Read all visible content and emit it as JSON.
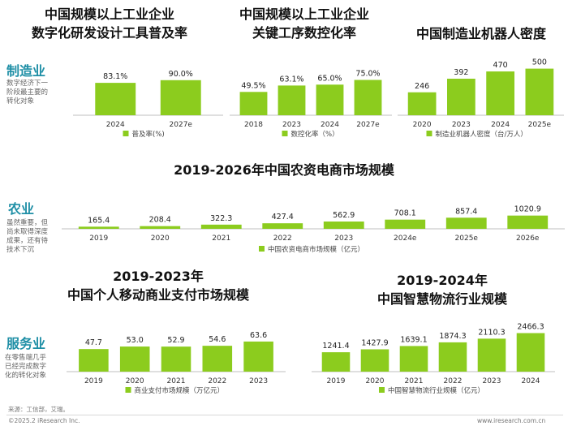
{
  "sections": {
    "manufacturing": {
      "label": "制造业",
      "desc": [
        "数字经济下一",
        "阶段最主要的",
        "转化对象"
      ]
    },
    "agriculture": {
      "label": "农业",
      "desc": [
        "虽然重要，但",
        "尚未取得深度",
        "成果，还有待",
        "技术下沉"
      ]
    },
    "services": {
      "label": "服务业",
      "desc": [
        "在零售端几乎",
        "已经完成数字",
        "化的转化对象"
      ]
    }
  },
  "footer": {
    "source": "来源：工信部，艾瑞。",
    "copyright": "©2025.2 iResearch Inc.",
    "site": "www.iresearch.com.cn"
  },
  "colors": {
    "bar": "#8ccc1e",
    "section": "#1f8fa6"
  },
  "chart_data": [
    {
      "id": "c1",
      "type": "bar",
      "title": [
        "中国规模以上工业企业",
        "数字化研发设计工具普及率"
      ],
      "categories": [
        "2024",
        "2027e"
      ],
      "values": [
        83.1,
        90.0
      ],
      "labels": [
        "83.1%",
        "90.0%"
      ],
      "legend": "普及率(%)",
      "ylim": [
        0,
        100
      ]
    },
    {
      "id": "c2",
      "type": "bar",
      "title": [
        "中国规模以上工业企业",
        "关键工序数控化率"
      ],
      "categories": [
        "2018",
        "2023",
        "2024",
        "2027e"
      ],
      "values": [
        49.5,
        63.1,
        65.0,
        75.0
      ],
      "labels": [
        "49.5%",
        "63.1%",
        "65.0%",
        "75.0%"
      ],
      "legend": "数控化率（%）",
      "ylim": [
        0,
        100
      ]
    },
    {
      "id": "c3",
      "type": "bar",
      "title": [
        "中国制造业机器人密度"
      ],
      "categories": [
        "2020",
        "2023",
        "2024",
        "2025e"
      ],
      "values": [
        246,
        392,
        470,
        500
      ],
      "labels": [
        "246",
        "392",
        "470",
        "500"
      ],
      "legend": "制造业机器人密度（台/万人）",
      "ylim": [
        0,
        540
      ]
    },
    {
      "id": "c4",
      "type": "bar",
      "title": [
        "2019-2026年中国农资电商市场规模"
      ],
      "categories": [
        "2019",
        "2020",
        "2021",
        "2022",
        "2023",
        "2024e",
        "2025e",
        "2026e"
      ],
      "values": [
        165.4,
        208.4,
        322.3,
        427.4,
        562.9,
        708.1,
        857.4,
        1020.9
      ],
      "labels": [
        "165.4",
        "208.4",
        "322.3",
        "427.4",
        "562.9",
        "708.1",
        "857.4",
        "1020.9"
      ],
      "legend": "中国农资电商市场规模（亿元）",
      "ylim": [
        0,
        2500
      ]
    },
    {
      "id": "c5",
      "type": "bar",
      "title": [
        "2019-2023年",
        "中国个人移动商业支付市场规模"
      ],
      "categories": [
        "2019",
        "2020",
        "2021",
        "2022",
        "2023"
      ],
      "values": [
        47.7,
        53.0,
        52.9,
        54.6,
        63.6
      ],
      "labels": [
        "47.7",
        "53.0",
        "52.9",
        "54.6",
        "63.6"
      ],
      "legend": "商业支付市场规模（万亿元）",
      "ylim": [
        0,
        72
      ]
    },
    {
      "id": "c6",
      "type": "bar",
      "title": [
        "2019-2024年",
        "中国智慧物流行业规模"
      ],
      "categories": [
        "2019",
        "2020",
        "2021",
        "2022",
        "2023",
        "2024"
      ],
      "values": [
        1241.4,
        1427.9,
        1639.1,
        1874.3,
        2110.3,
        2466.3
      ],
      "labels": [
        "1241.4",
        "1427.9",
        "1639.1",
        "1874.3",
        "2110.3",
        "2466.3"
      ],
      "legend": "中国智慧物流行业规模（亿元）",
      "ylim": [
        0,
        2700
      ]
    }
  ]
}
